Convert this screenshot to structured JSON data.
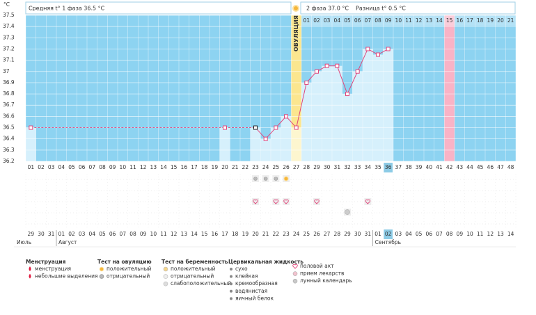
{
  "chart_data": {
    "type": "line",
    "unit": "°C",
    "phase1_text": "Средняя t° 1 фаза 36.5 °C",
    "phase2_text": "2 фаза 37.0 °C",
    "difference_text": "Разница t° 0.5 °C",
    "ovulation_label": "ОВУЛЯЦИЯ",
    "categories": [
      "01",
      "02",
      "03",
      "04",
      "05",
      "06",
      "07",
      "08",
      "09",
      "10",
      "11",
      "12",
      "13",
      "14",
      "15",
      "16",
      "17",
      "18",
      "19",
      "20",
      "21",
      "22",
      "23",
      "24",
      "25",
      "26",
      "27",
      "28",
      "29",
      "30",
      "31",
      "32",
      "33",
      "34",
      "35",
      "36",
      "37",
      "38",
      "39",
      "40",
      "41",
      "42",
      "43",
      "44",
      "45",
      "46",
      "47",
      "48"
    ],
    "values": [
      36.5,
      null,
      null,
      null,
      null,
      null,
      null,
      null,
      null,
      null,
      null,
      null,
      null,
      null,
      null,
      null,
      null,
      null,
      null,
      36.5,
      null,
      null,
      36.5,
      36.4,
      36.5,
      36.6,
      36.5,
      36.9,
      37.0,
      37.05,
      37.05,
      36.8,
      37.0,
      37.2,
      37.15,
      37.2,
      null,
      null,
      null,
      null,
      null,
      null,
      null,
      null,
      null,
      null,
      null,
      null
    ],
    "color": "#e0457b",
    "phase2_day_labels": [
      null,
      null,
      null,
      null,
      null,
      null,
      null,
      null,
      null,
      null,
      null,
      null,
      null,
      null,
      null,
      null,
      null,
      null,
      null,
      null,
      null,
      null,
      null,
      null,
      null,
      null,
      null,
      "01",
      "02",
      "03",
      "04",
      "05",
      "06",
      "07",
      "08",
      "09",
      "10",
      "11",
      "12",
      "13",
      "14",
      "15",
      "16",
      "17",
      "18",
      "19",
      "20",
      "21"
    ],
    "dates": [
      "29",
      "30",
      "31",
      "01",
      "02",
      "03",
      "04",
      "05",
      "06",
      "07",
      "08",
      "09",
      "10",
      "11",
      "12",
      "13",
      "14",
      "15",
      "16",
      "17",
      "18",
      "19",
      "20",
      "21",
      "22",
      "23",
      "24",
      "25",
      "26",
      "27",
      "28",
      "29",
      "30",
      "31",
      "01",
      "02",
      "03",
      "04",
      "05",
      "06",
      "07",
      "08",
      "09",
      "10",
      "11",
      "12",
      "13",
      "14"
    ],
    "red_date_days": [
      6,
      7,
      13,
      14,
      20,
      21,
      27,
      28,
      34,
      35,
      41,
      42,
      48
    ],
    "months": [
      "Июль",
      null,
      null,
      "Август",
      null,
      null,
      null,
      null,
      null,
      null,
      null,
      null,
      null,
      null,
      null,
      null,
      null,
      null,
      null,
      null,
      null,
      null,
      null,
      null,
      null,
      null,
      null,
      null,
      null,
      null,
      null,
      null,
      null,
      null,
      "Сентябрь",
      null,
      null,
      null,
      null,
      null,
      null,
      null,
      null,
      null,
      null,
      null,
      null,
      null
    ],
    "ovulation_test_negative_days": [
      23,
      24,
      25
    ],
    "ovulation_test_positive_days": [
      26
    ],
    "intercourse_days": [
      23,
      25,
      26,
      29,
      34
    ],
    "lunar_calendar_days": [
      32
    ],
    "ylim": [
      36.2,
      37.5
    ],
    "yticks": [
      36.2,
      36.3,
      36.4,
      36.5,
      36.6,
      36.7,
      36.8,
      36.9,
      37,
      37.1,
      37.2,
      37.3,
      37.4,
      37.5
    ],
    "grid": true,
    "legend": [
      {
        "title": "Менструация",
        "items": [
          "менструация",
          "небольшие выделения"
        ]
      },
      {
        "title": "Тест на овуляцию",
        "items": [
          "положительный",
          "отрицательный"
        ]
      },
      {
        "title": "Тест на беременность",
        "items": [
          "положительный",
          "отрицательный",
          "слабоположительный"
        ]
      },
      {
        "title": "Цервикальная жидкость",
        "items": [
          "сухо",
          "клейкая",
          "кремообразная",
          "водянистая",
          "яичный белок"
        ]
      },
      {
        "items": [
          "половой акт",
          "прием лекарств",
          "лунный календарь"
        ]
      }
    ]
  }
}
